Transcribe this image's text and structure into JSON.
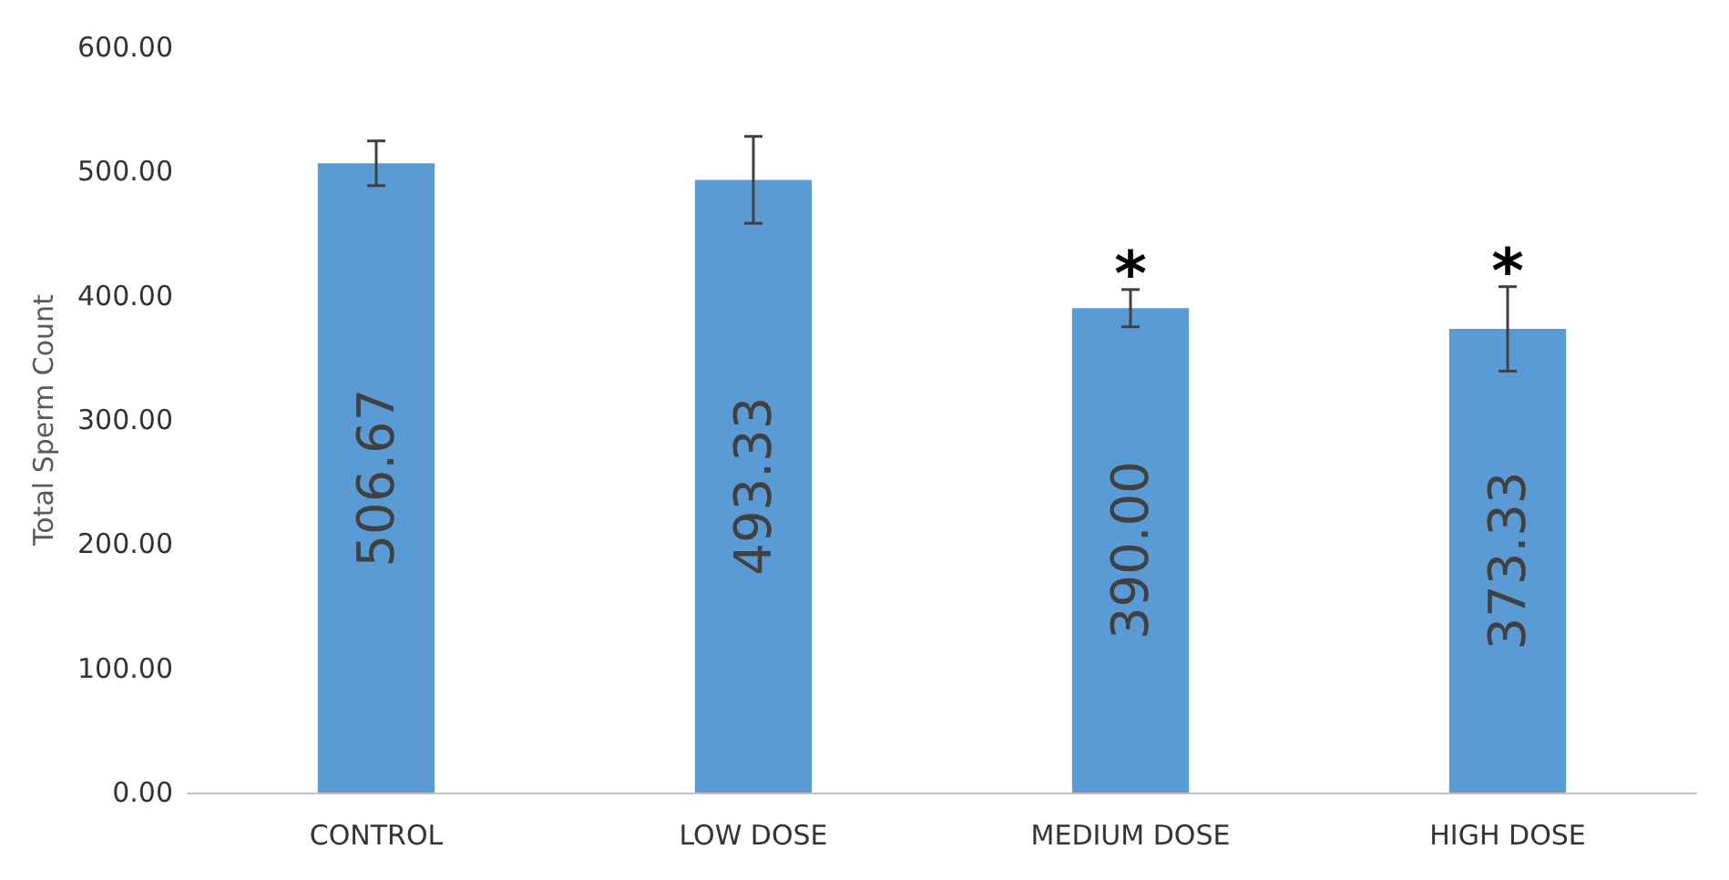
{
  "chart_data": {
    "type": "bar",
    "ylabel": "Total Sperm Count",
    "categories": [
      "CONTROL",
      "LOW DOSE",
      "MEDIUM DOSE",
      "HIGH DOSE"
    ],
    "values": [
      506.67,
      493.33,
      390,
      373.33
    ],
    "value_labels": [
      "506.67",
      "493.33",
      "390.00",
      "373.33"
    ],
    "errors": [
      18,
      35,
      15,
      34
    ],
    "color": "#5b9bd5",
    "ylim": [
      0,
      600
    ],
    "yticks": [
      {
        "value": 0,
        "label": "0.00"
      },
      {
        "value": 100,
        "label": "100.00"
      },
      {
        "value": 200,
        "label": "200.00"
      },
      {
        "value": 300,
        "label": "300.00"
      },
      {
        "value": 400,
        "label": "400.00"
      },
      {
        "value": 500,
        "label": "500.00"
      },
      {
        "value": 600,
        "label": "600.00"
      }
    ],
    "annotations": [
      {
        "text": "*",
        "x": "MEDIUM DOSE",
        "y": 405
      },
      {
        "text": "*",
        "x": "HIGH DOSE",
        "y": 407
      }
    ],
    "grid": false
  }
}
